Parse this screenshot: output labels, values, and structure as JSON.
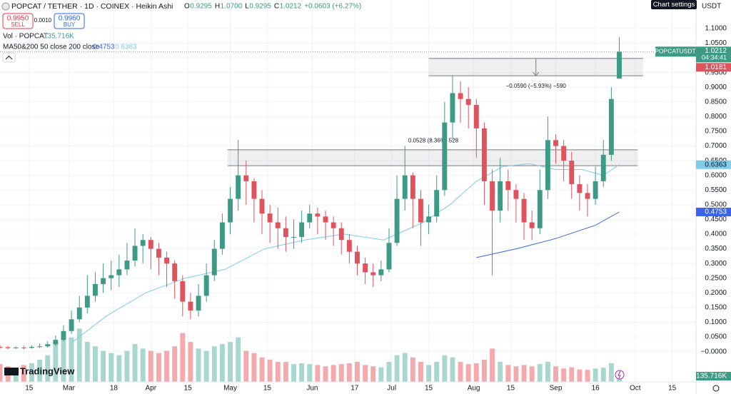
{
  "chart_data": {
    "type": "candlestick",
    "title": "POPCAT / TETHER · 1D · COINEX · Heikin Ashi",
    "legend_ohlc": [
      "O",
      "0.9295",
      "H",
      "1.0700",
      "L",
      "0.9295",
      "C",
      "1.0212",
      "+0.0603 (+6.27%)"
    ],
    "trade": {
      "sell_price": "0.9950",
      "sell": "SELL",
      "spread": "0.0010",
      "buy_price": "0.9960",
      "buy": "BUY"
    },
    "volume_legend": {
      "name": "Vol · POPCAT",
      "value": "135.716K"
    },
    "ma_legend": "MA50&200 50 close 200 close",
    "axis_labels": {
      "currency": "USDT",
      "symbol": "POPCATUSDT",
      "countdown": "04:34:41",
      "bid": "1.0181",
      "settings": "Chart settings"
    },
    "brand": "TradingView",
    "grid": true,
    "xlim": [
      0,
      263
    ],
    "ylim": [
      -0.103,
      1.197
    ],
    "y2lim": [
      0,
      8600000
    ],
    "xticks": [
      {
        "value": 11,
        "label": "15"
      },
      {
        "value": 26,
        "label": "Mar"
      },
      {
        "value": 43,
        "label": "18"
      },
      {
        "value": 57,
        "label": "Apr"
      },
      {
        "value": 71,
        "label": "15"
      },
      {
        "value": 87,
        "label": "May"
      },
      {
        "value": 101,
        "label": "15"
      },
      {
        "value": 118,
        "label": "Jun"
      },
      {
        "value": 134,
        "label": "17"
      },
      {
        "value": 148,
        "label": "Jul"
      },
      {
        "value": 162,
        "label": "15"
      },
      {
        "value": 179,
        "label": "Aug"
      },
      {
        "value": 193,
        "label": "15"
      },
      {
        "value": 210,
        "label": "Sep"
      },
      {
        "value": 225,
        "label": "16"
      },
      {
        "value": 240,
        "label": "Oct"
      },
      {
        "value": 254,
        "label": "15"
      }
    ],
    "yticks": [
      {
        "value": 1.1,
        "label": "1.1000"
      },
      {
        "value": 1.05,
        "label": "1.0500"
      },
      {
        "value": 1.0,
        "label": "1.0000"
      },
      {
        "value": 0.95,
        "label": "0.9500"
      },
      {
        "value": 0.9,
        "label": "0.9000"
      },
      {
        "value": 0.85,
        "label": "0.8500"
      },
      {
        "value": 0.8,
        "label": "0.8000"
      },
      {
        "value": 0.75,
        "label": "0.7500"
      },
      {
        "value": 0.7,
        "label": "0.7000"
      },
      {
        "value": 0.65,
        "label": "0.6500"
      },
      {
        "value": 0.6,
        "label": "0.6000"
      },
      {
        "value": 0.55,
        "label": "0.5500"
      },
      {
        "value": 0.5,
        "label": "0.5000"
      },
      {
        "value": 0.45,
        "label": "0.4500"
      },
      {
        "value": 0.4,
        "label": "0.4000"
      },
      {
        "value": 0.35,
        "label": "0.3500"
      },
      {
        "value": 0.3,
        "label": "0.3000"
      },
      {
        "value": 0.25,
        "label": "0.2500"
      },
      {
        "value": 0.2,
        "label": "0.2000"
      },
      {
        "value": 0.15,
        "label": "0.1500"
      },
      {
        "value": 0.1,
        "label": "0.1000"
      },
      {
        "value": 0.05,
        "label": "0.0500"
      },
      {
        "value": 0,
        "label": "−0.0000"
      }
    ],
    "candles": {
      "up_color": "#3d9a84",
      "down_color": "#e0525c",
      "x": [
        0,
        3,
        6,
        9,
        12,
        15,
        18,
        21,
        24,
        27,
        30,
        33,
        36,
        39,
        42,
        45,
        48,
        51,
        54,
        57,
        60,
        63,
        66,
        69,
        72,
        75,
        78,
        81,
        84,
        87,
        90,
        93,
        96,
        99,
        102,
        105,
        108,
        111,
        114,
        117,
        120,
        123,
        126,
        129,
        132,
        135,
        138,
        141,
        144,
        147,
        150,
        153,
        156,
        159,
        162,
        165,
        168,
        171,
        174,
        177,
        180,
        183,
        186,
        189,
        192,
        195,
        198,
        201,
        204,
        207,
        210,
        213,
        216,
        219,
        222,
        225,
        228,
        231,
        234
      ],
      "open": [
        0.016,
        0.015,
        0.012,
        0.014,
        0.013,
        0.016,
        0.018,
        0.025,
        0.04,
        0.07,
        0.11,
        0.15,
        0.19,
        0.23,
        0.25,
        0.26,
        0.28,
        0.31,
        0.36,
        0.38,
        0.35,
        0.32,
        0.3,
        0.24,
        0.17,
        0.14,
        0.19,
        0.26,
        0.35,
        0.44,
        0.52,
        0.6,
        0.58,
        0.52,
        0.47,
        0.44,
        0.42,
        0.39,
        0.39,
        0.44,
        0.47,
        0.46,
        0.44,
        0.42,
        0.38,
        0.34,
        0.3,
        0.27,
        0.26,
        0.28,
        0.37,
        0.52,
        0.6,
        0.52,
        0.44,
        0.46,
        0.55,
        0.78,
        0.88,
        0.86,
        0.84,
        0.76,
        0.58,
        0.48,
        0.58,
        0.55,
        0.52,
        0.44,
        0.42,
        0.55,
        0.72,
        0.7,
        0.65,
        0.57,
        0.54,
        0.52,
        0.58,
        0.67,
        0.9295
      ],
      "high": [
        0.022,
        0.019,
        0.018,
        0.02,
        0.022,
        0.028,
        0.035,
        0.055,
        0.09,
        0.14,
        0.19,
        0.26,
        0.27,
        0.3,
        0.31,
        0.33,
        0.37,
        0.42,
        0.4,
        0.39,
        0.37,
        0.34,
        0.31,
        0.26,
        0.2,
        0.23,
        0.3,
        0.38,
        0.47,
        0.56,
        0.72,
        0.65,
        0.59,
        0.55,
        0.5,
        0.49,
        0.46,
        0.45,
        0.48,
        0.5,
        0.49,
        0.48,
        0.46,
        0.44,
        0.4,
        0.36,
        0.32,
        0.3,
        0.31,
        0.42,
        0.6,
        0.7,
        0.61,
        0.55,
        0.5,
        0.6,
        0.85,
        0.94,
        0.92,
        0.9,
        0.86,
        0.78,
        0.62,
        0.66,
        0.62,
        0.57,
        0.54,
        0.48,
        0.62,
        0.8,
        0.74,
        0.72,
        0.68,
        0.6,
        0.57,
        0.63,
        0.72,
        0.9,
        1.07
      ],
      "low": [
        0.01,
        0.008,
        0.009,
        0.008,
        0.01,
        0.012,
        0.014,
        0.02,
        0.035,
        0.06,
        0.1,
        0.13,
        0.17,
        0.2,
        0.21,
        0.22,
        0.26,
        0.29,
        0.3,
        0.28,
        0.26,
        0.22,
        0.18,
        0.12,
        0.11,
        0.12,
        0.17,
        0.24,
        0.33,
        0.4,
        0.48,
        0.5,
        0.44,
        0.4,
        0.37,
        0.35,
        0.34,
        0.35,
        0.37,
        0.42,
        0.4,
        0.38,
        0.36,
        0.33,
        0.3,
        0.26,
        0.23,
        0.22,
        0.24,
        0.27,
        0.36,
        0.48,
        0.42,
        0.36,
        0.4,
        0.44,
        0.53,
        0.72,
        0.78,
        0.76,
        0.66,
        0.5,
        0.26,
        0.44,
        0.48,
        0.44,
        0.38,
        0.38,
        0.4,
        0.52,
        0.64,
        0.58,
        0.52,
        0.48,
        0.46,
        0.5,
        0.56,
        0.65,
        0.9295
      ],
      "close": [
        0.015,
        0.012,
        0.014,
        0.013,
        0.016,
        0.018,
        0.025,
        0.04,
        0.07,
        0.11,
        0.15,
        0.19,
        0.23,
        0.25,
        0.26,
        0.28,
        0.31,
        0.36,
        0.38,
        0.35,
        0.32,
        0.3,
        0.24,
        0.17,
        0.14,
        0.19,
        0.26,
        0.35,
        0.44,
        0.52,
        0.6,
        0.58,
        0.52,
        0.47,
        0.44,
        0.42,
        0.39,
        0.39,
        0.44,
        0.47,
        0.46,
        0.44,
        0.42,
        0.38,
        0.34,
        0.3,
        0.27,
        0.26,
        0.28,
        0.37,
        0.52,
        0.6,
        0.52,
        0.44,
        0.46,
        0.55,
        0.78,
        0.88,
        0.86,
        0.84,
        0.76,
        0.58,
        0.48,
        0.58,
        0.55,
        0.52,
        0.44,
        0.42,
        0.55,
        0.72,
        0.7,
        0.65,
        0.57,
        0.54,
        0.52,
        0.58,
        0.67,
        0.86,
        1.0212
      ]
    },
    "volume": {
      "axis": "y2",
      "up_color": "#a8d8cd",
      "down_color": "#f4a9ad",
      "values": [
        400000,
        350000,
        300000,
        380000,
        420000,
        500000,
        600000,
        900000,
        1100000,
        1000000,
        1200000,
        900000,
        800000,
        700000,
        650000,
        600000,
        700000,
        850000,
        750000,
        700000,
        650000,
        700000,
        800000,
        1100000,
        900000,
        750000,
        700000,
        800000,
        850000,
        900000,
        1000000,
        700000,
        650000,
        550000,
        500000,
        450000,
        450000,
        400000,
        420000,
        400000,
        380000,
        350000,
        380000,
        400000,
        420000,
        450000,
        380000,
        350000,
        330000,
        450000,
        600000,
        650000,
        550000,
        450000,
        380000,
        450000,
        600000,
        550000,
        450000,
        400000,
        420000,
        500000,
        750000,
        450000,
        380000,
        350000,
        380000,
        350000,
        400000,
        450000,
        350000,
        300000,
        330000,
        280000,
        270000,
        300000,
        320000,
        420000,
        135716
      ],
      "value_labels": [
        null,
        null,
        null,
        null,
        null,
        null,
        null,
        null,
        null,
        null,
        null,
        null,
        null,
        null,
        null,
        null,
        null,
        null,
        null,
        null,
        null,
        null,
        null,
        null,
        null,
        null,
        null,
        null,
        null,
        null,
        null,
        null,
        null,
        null,
        null,
        null,
        null,
        null,
        null,
        null,
        null,
        null,
        null,
        null,
        null,
        null,
        null,
        null,
        null,
        null,
        null,
        null,
        null,
        null,
        null,
        null,
        null,
        null,
        null,
        null,
        null,
        null,
        null,
        null,
        null,
        null,
        null,
        null,
        null,
        null,
        null,
        null,
        null,
        null,
        null,
        null,
        null,
        null,
        "135.716K"
      ]
    },
    "ma": [
      {
        "name": "MA50",
        "color": "#7fcbea",
        "x": [
          27,
          40,
          55,
          70,
          85,
          100,
          115,
          130,
          145,
          160,
          170,
          180,
          190,
          200,
          210,
          220,
          228,
          234
        ],
        "values": [
          0.03,
          0.12,
          0.2,
          0.25,
          0.28,
          0.35,
          0.38,
          0.4,
          0.38,
          0.44,
          0.5,
          0.58,
          0.63,
          0.64,
          0.62,
          0.62,
          0.6,
          0.6363
        ]
      },
      {
        "name": "MA200",
        "color": "#3a63e8",
        "x": [
          180,
          195,
          210,
          225,
          234
        ],
        "values": [
          0.32,
          0.35,
          0.385,
          0.43,
          0.4753
        ]
      }
    ],
    "ranges": [
      {
        "x": [
          162,
          243
        ],
        "y": [
          0.998,
          0.939
        ],
        "label": "−0.0590 (−5.93%) −590"
      },
      {
        "x": [
          86,
          241
        ],
        "y": [
          0.687,
          0.633
        ],
        "label": "0.0528 (8.36%) 528"
      }
    ]
  }
}
